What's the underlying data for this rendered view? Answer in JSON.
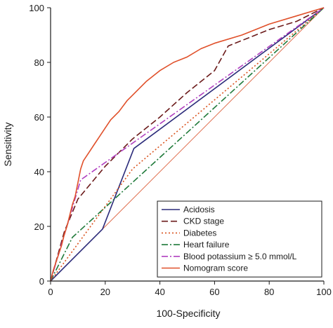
{
  "chart_data": {
    "type": "line",
    "title": "",
    "xlabel": "100-Specificity",
    "ylabel": "Sensitivity",
    "xlim": [
      0,
      100
    ],
    "ylim": [
      0,
      100
    ],
    "xticks": [
      0,
      20,
      40,
      60,
      80,
      100
    ],
    "yticks": [
      0,
      20,
      40,
      60,
      80,
      100
    ],
    "x_tick_labels": [
      "0",
      "20",
      "40",
      "60",
      "80",
      "100"
    ],
    "y_tick_labels": [
      "0",
      "20",
      "40",
      "60",
      "80",
      "100"
    ],
    "grid": false,
    "legend_position": "bottom-right",
    "reference_line": {
      "x": [
        0,
        100
      ],
      "y": [
        0,
        100
      ],
      "color": "#e07050"
    },
    "series": [
      {
        "name": "Acidosis",
        "color": "#2b2b7a",
        "dash": "solid",
        "x": [
          0,
          19,
          30.5,
          100
        ],
        "y": [
          0,
          19,
          48.5,
          100
        ]
      },
      {
        "name": "CKD stage",
        "color": "#6b1a1a",
        "dash": "dashed",
        "x": [
          0,
          5,
          10,
          20,
          30,
          40,
          50,
          60,
          65,
          80,
          90,
          100
        ],
        "y": [
          0,
          18,
          30,
          42,
          52,
          60,
          69,
          77,
          86,
          92,
          95,
          100
        ]
      },
      {
        "name": "Diabetes",
        "color": "#d9531e",
        "dash": "dotted",
        "x": [
          0,
          30,
          100
        ],
        "y": [
          0,
          41,
          100
        ]
      },
      {
        "name": "Heart failure",
        "color": "#1f7a3a",
        "dash": "dashdot",
        "x": [
          0,
          8,
          100
        ],
        "y": [
          0,
          16,
          100
        ]
      },
      {
        "name": "Blood potassium ≥ 5.0 mmol/L",
        "color": "#b040c0",
        "dash": "dashdot",
        "x": [
          0,
          11,
          100
        ],
        "y": [
          0,
          37,
          100
        ]
      },
      {
        "name": "Nomogram score",
        "color": "#e0502a",
        "dash": "solid",
        "x": [
          0,
          1,
          2,
          3,
          4,
          5,
          6,
          7,
          8,
          9,
          10,
          11,
          12,
          14,
          16,
          18,
          20,
          22,
          25,
          28,
          30,
          35,
          40,
          45,
          50,
          55,
          60,
          70,
          80,
          90,
          100
        ],
        "y": [
          0,
          4,
          7,
          10,
          13,
          17,
          20,
          24,
          28,
          31,
          36,
          41,
          44,
          47,
          50,
          53,
          56,
          59,
          62,
          66,
          68,
          73,
          77,
          80,
          82,
          85,
          87,
          90,
          94,
          97,
          100
        ]
      }
    ]
  }
}
